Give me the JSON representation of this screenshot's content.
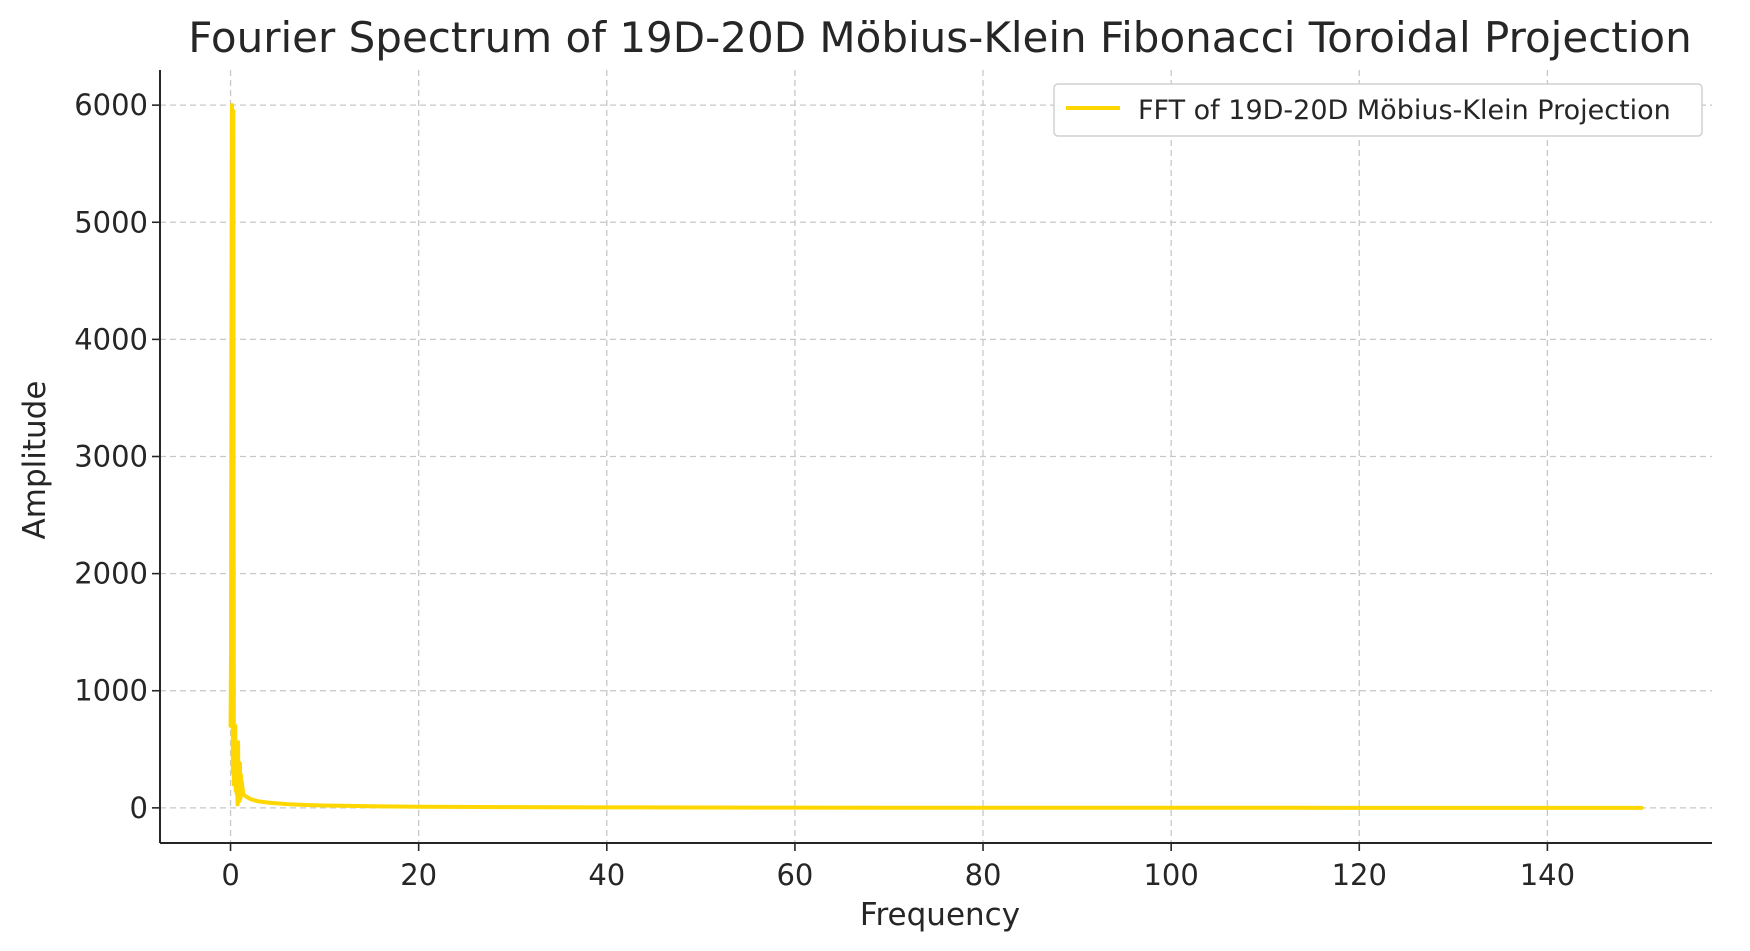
{
  "chart_data": {
    "type": "line",
    "title": "Fourier Spectrum of 19D-20D Möbius-Klein Fibonacci Toroidal Projection",
    "xlabel": "Frequency",
    "ylabel": "Amplitude",
    "xlim": [
      -7.5,
      157.5
    ],
    "ylim": [
      -300,
      6300
    ],
    "grid": true,
    "legend_position": "top-right",
    "x_ticks": [
      0,
      20,
      40,
      60,
      80,
      100,
      120,
      140
    ],
    "y_ticks": [
      0,
      1000,
      2000,
      3000,
      4000,
      5000,
      6000
    ],
    "series": [
      {
        "name": "FFT of 19D-20D Möbius-Klein Projection",
        "color": "#FFD700",
        "x": [
          0.0,
          0.05,
          0.1,
          0.15,
          0.2,
          0.25,
          0.3,
          0.35,
          0.4,
          0.45,
          0.5,
          0.55,
          0.6,
          0.65,
          0.7,
          0.75,
          0.8,
          0.85,
          0.9,
          0.95,
          1.0,
          1.05,
          1.1,
          1.15,
          1.2,
          1.3,
          1.4,
          1.6,
          1.8,
          2.0,
          2.5,
          3.0,
          4.0,
          5.0,
          6.0,
          8.0,
          10.0,
          15.0,
          20.0,
          30.0,
          40.0,
          60.0,
          80.0,
          100.0,
          120.0,
          140.0,
          150.0
        ],
        "values": [
          700,
          1300,
          4200,
          6000,
          2000,
          300,
          5950,
          200,
          650,
          200,
          700,
          150,
          500,
          120,
          300,
          30,
          560,
          100,
          340,
          60,
          380,
          80,
          280,
          120,
          220,
          150,
          110,
          100,
          90,
          80,
          65,
          55,
          45,
          38,
          32,
          25,
          20,
          14,
          10,
          6,
          4,
          2,
          1,
          1,
          0,
          0,
          0
        ]
      }
    ]
  }
}
